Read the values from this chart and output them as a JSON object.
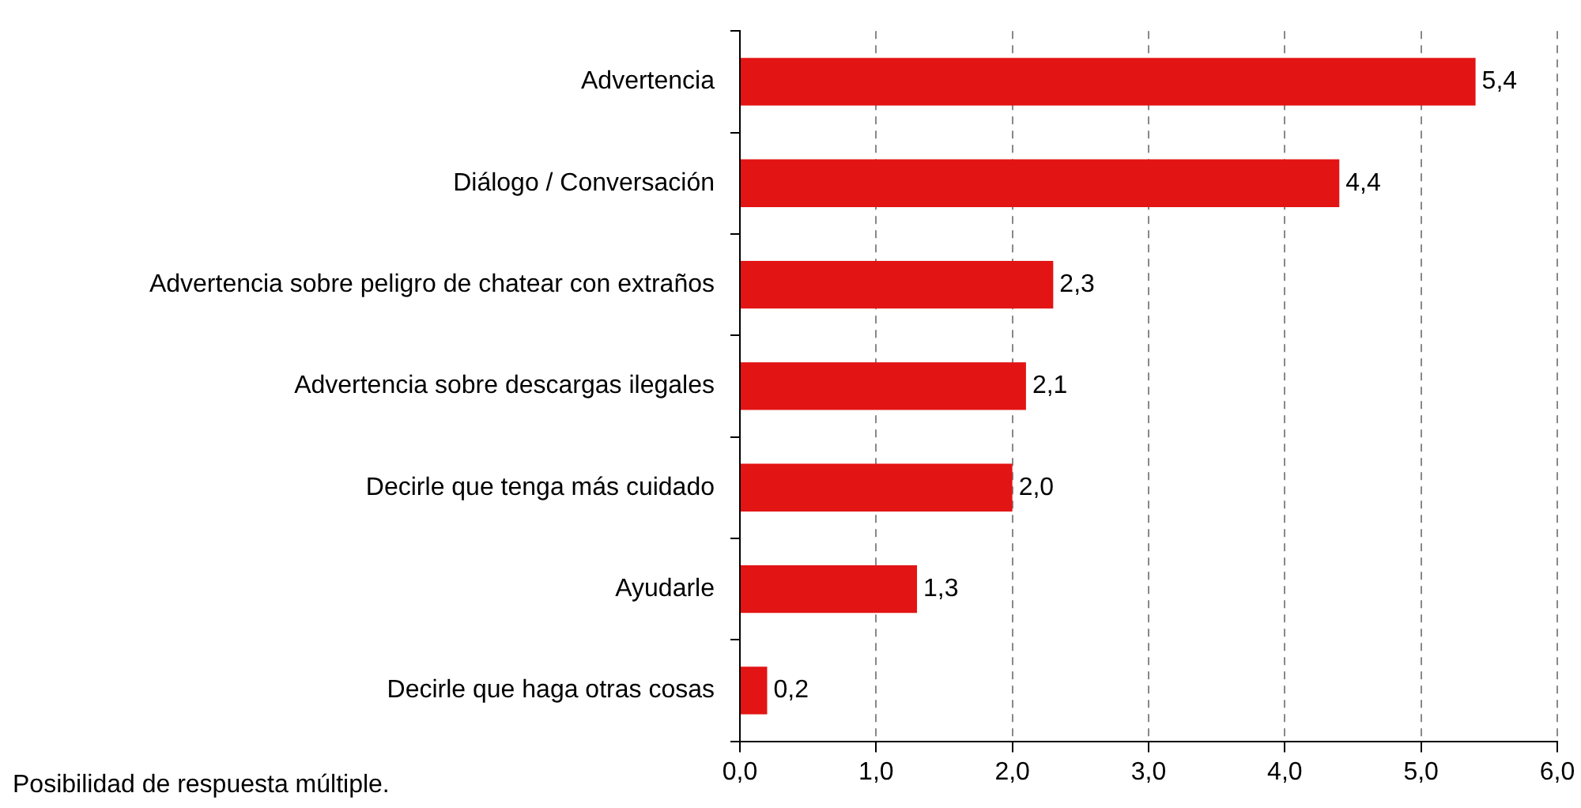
{
  "chart_data": {
    "type": "bar",
    "orientation": "horizontal",
    "categories": [
      "Advertencia",
      "Diálogo / Conversación",
      "Advertencia sobre peligro de chatear con extraños",
      "Advertencia sobre descargas ilegales",
      "Decirle que tenga más cuidado",
      "Ayudarle",
      "Decirle que haga otras cosas"
    ],
    "values": [
      5.4,
      4.4,
      2.3,
      2.1,
      2.0,
      1.3,
      0.2
    ],
    "value_labels": [
      "5,4",
      "4,4",
      "2,3",
      "2,1",
      "2,0",
      "1,3",
      "0,2"
    ],
    "color": "#e31414",
    "xlim": [
      0,
      6
    ],
    "xticks": [
      {
        "value": 0,
        "label": "0,0"
      },
      {
        "value": 1,
        "label": "1,0"
      },
      {
        "value": 2,
        "label": "2,0"
      },
      {
        "value": 3,
        "label": "3,0"
      },
      {
        "value": 4,
        "label": "4,0"
      },
      {
        "value": 5,
        "label": "5,0"
      },
      {
        "value": 6,
        "label": "6,0"
      }
    ],
    "grid": "x",
    "annotations": [
      "Posibilidad de respuesta múltiple."
    ]
  }
}
